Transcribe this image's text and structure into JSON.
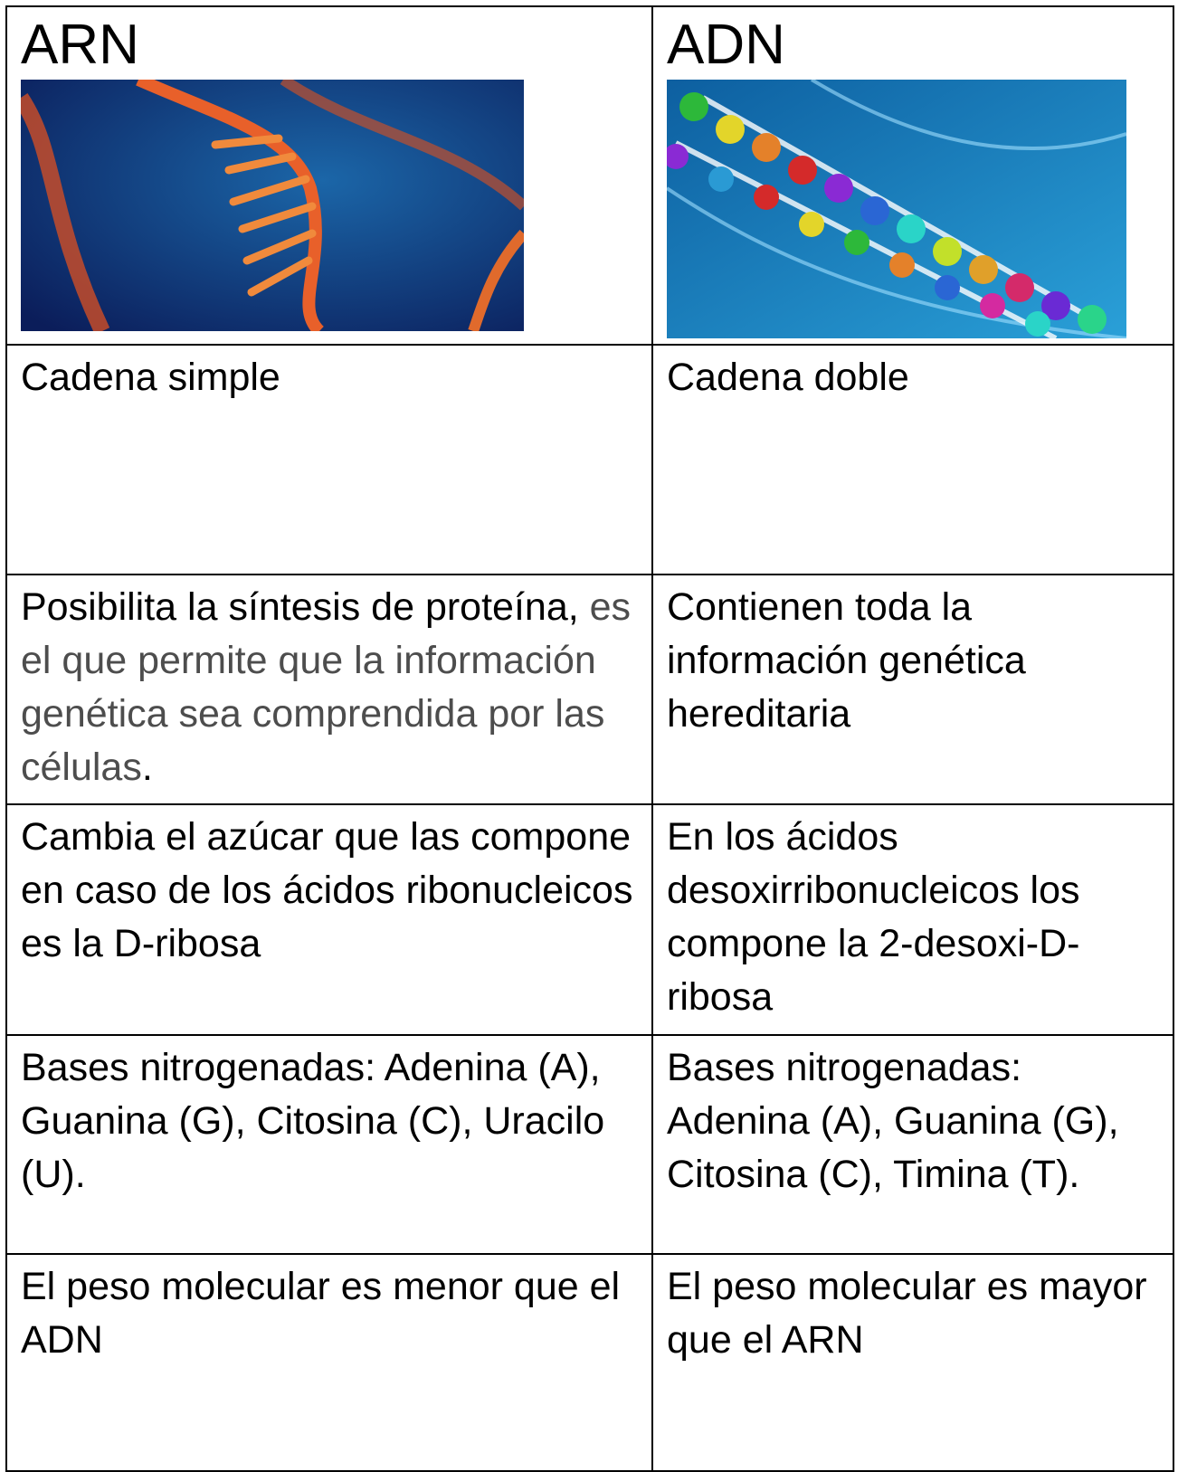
{
  "header": {
    "left": "ARN",
    "right": "ADN"
  },
  "rows": [
    [
      "Cadena simple",
      "Cadena doble"
    ],
    [
      [
        "Posibilita la síntesis de proteína,",
        "es el que permite que la información genética sea comprendida por las células",
        "."
      ],
      "Contienen toda la información genética hereditaria"
    ],
    [
      "Cambia el azúcar que las compone en caso de los ácidos ribonucleicos es la D-ribosa",
      "En los ácidos desoxirribonucleicos los compone la 2-desoxi-D-ribosa"
    ],
    [
      "Bases nitrogenadas: Adenina (A), Guanina (G), Citosina (C), Uracilo (U).",
      "Bases nitrogenadas: Adenina (A), Guanina (G), Citosina (C), Timina (T)."
    ],
    [
      "El peso molecular es menor que el ADN",
      "El peso molecular es mayor que el ARN"
    ]
  ]
}
